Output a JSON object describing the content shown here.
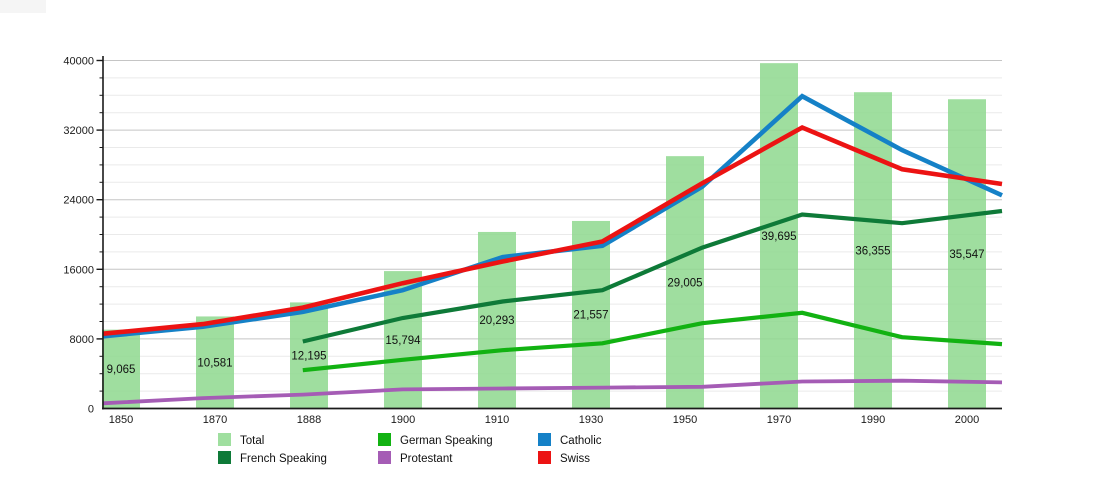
{
  "chart_data": {
    "type": "bar+line",
    "title": "",
    "xlabel": "",
    "ylabel": "",
    "categories": [
      "1850",
      "1870",
      "1888",
      "1900",
      "1910",
      "1930",
      "1950",
      "1970",
      "1990",
      "2000"
    ],
    "ylim": [
      0,
      40000
    ],
    "y_major_step": 8000,
    "y_minor_step": 2000,
    "y_tick_labels": [
      "0",
      "8000",
      "16000",
      "24000",
      "32000",
      "40000"
    ],
    "grid": "on",
    "grid_major_color": "#c5c5c5",
    "grid_minor_color": "#eaeaea",
    "axis_color": "#1a1a1a",
    "label_color": "#111111",
    "bar_series": {
      "name": "Total",
      "color": "#8ed88e",
      "legend_color": "#9fdf9f",
      "values": [
        9065,
        10581,
        12195,
        15794,
        20293,
        21557,
        29005,
        39695,
        36355,
        35547
      ],
      "labels": [
        "9,065",
        "10,581",
        "12,195",
        "15,794",
        "20,293",
        "21,557",
        "29,005",
        "39,695",
        "36,355",
        "35,547"
      ]
    },
    "line_series": [
      {
        "name": "French Speaking",
        "color": "#0e7a38",
        "values": [
          null,
          null,
          7700,
          10400,
          12300,
          13600,
          18500,
          22300,
          21300,
          22700
        ]
      },
      {
        "name": "German Speaking",
        "color": "#12b212",
        "values": [
          null,
          null,
          4400,
          5600,
          6700,
          7500,
          9800,
          11000,
          8200,
          7400
        ]
      },
      {
        "name": "Protestant",
        "color": "#a55cb5",
        "values": [
          600,
          1200,
          1600,
          2200,
          2300,
          2400,
          2500,
          3100,
          3200,
          3000
        ]
      },
      {
        "name": "Catholic",
        "color": "#1581c7",
        "values": [
          8300,
          9400,
          11100,
          13600,
          17400,
          18700,
          25500,
          35900,
          29700,
          24500
        ]
      },
      {
        "name": "Swiss",
        "color": "#ec1313",
        "values": [
          8600,
          9700,
          11600,
          14400,
          16900,
          19200,
          25900,
          32300,
          27500,
          25800
        ]
      }
    ],
    "legend_position": "bottom",
    "legend": [
      {
        "label": "Total",
        "color": "#9fdf9f"
      },
      {
        "label": "German Speaking",
        "color": "#12b212"
      },
      {
        "label": "Catholic",
        "color": "#1581c7"
      },
      {
        "label": "French Speaking",
        "color": "#0e7a38"
      },
      {
        "label": "Protestant",
        "color": "#a55cb5"
      },
      {
        "label": "Swiss",
        "color": "#ec1313"
      }
    ]
  }
}
